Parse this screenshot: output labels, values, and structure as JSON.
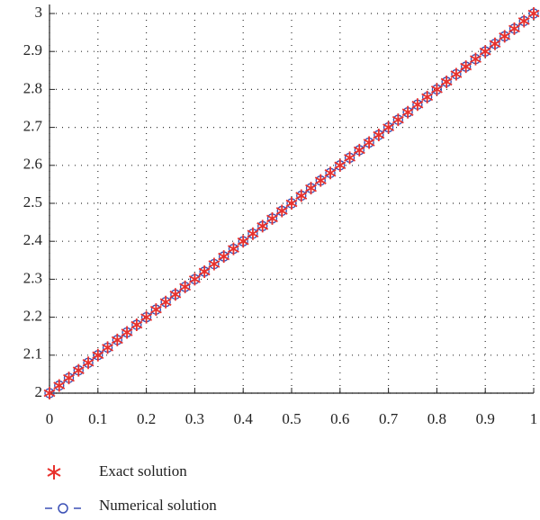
{
  "chart_data": {
    "type": "line",
    "x": [
      0,
      0.02,
      0.04,
      0.06,
      0.08,
      0.1,
      0.12,
      0.14,
      0.16,
      0.18,
      0.2,
      0.22,
      0.24,
      0.26,
      0.28,
      0.3,
      0.32,
      0.34,
      0.36,
      0.38,
      0.4,
      0.42,
      0.44,
      0.46,
      0.48,
      0.5,
      0.52,
      0.54,
      0.56,
      0.58,
      0.6,
      0.62,
      0.64,
      0.66,
      0.68,
      0.7,
      0.72,
      0.74,
      0.76,
      0.78,
      0.8,
      0.82,
      0.84,
      0.86,
      0.88,
      0.9,
      0.92,
      0.94,
      0.96,
      0.98,
      1
    ],
    "series": [
      {
        "name": "Exact solution",
        "color": "#e8312c",
        "marker": "asterisk",
        "values": [
          2,
          2.02,
          2.04,
          2.06,
          2.08,
          2.1,
          2.12,
          2.14,
          2.16,
          2.18,
          2.2,
          2.22,
          2.24,
          2.26,
          2.28,
          2.3,
          2.32,
          2.34,
          2.36,
          2.38,
          2.4,
          2.42,
          2.44,
          2.46,
          2.48,
          2.5,
          2.52,
          2.54,
          2.56,
          2.58,
          2.6,
          2.62,
          2.64,
          2.66,
          2.68,
          2.7,
          2.72,
          2.74,
          2.76,
          2.78,
          2.8,
          2.82,
          2.84,
          2.86,
          2.88,
          2.9,
          2.92,
          2.94,
          2.96,
          2.98,
          3
        ]
      },
      {
        "name": "Numerical solution",
        "color": "#3a4fb5",
        "marker": "circle",
        "values": [
          2,
          2.02,
          2.04,
          2.06,
          2.08,
          2.1,
          2.12,
          2.14,
          2.16,
          2.18,
          2.2,
          2.22,
          2.24,
          2.26,
          2.28,
          2.3,
          2.32,
          2.34,
          2.36,
          2.38,
          2.4,
          2.42,
          2.44,
          2.46,
          2.48,
          2.5,
          2.52,
          2.54,
          2.56,
          2.58,
          2.6,
          2.62,
          2.64,
          2.66,
          2.68,
          2.7,
          2.72,
          2.74,
          2.76,
          2.78,
          2.8,
          2.82,
          2.84,
          2.86,
          2.88,
          2.9,
          2.92,
          2.94,
          2.96,
          2.98,
          3
        ]
      }
    ],
    "xlim": [
      0,
      1
    ],
    "xticks": [
      0,
      0.1,
      0.2,
      0.3,
      0.4,
      0.5,
      0.6,
      0.7,
      0.8,
      0.9,
      1
    ],
    "ylim": [
      2,
      3
    ],
    "yticks": [
      2,
      2.1,
      2.2,
      2.3,
      2.4,
      2.5,
      2.6,
      2.7,
      2.8,
      2.9,
      3
    ],
    "grid": true
  }
}
